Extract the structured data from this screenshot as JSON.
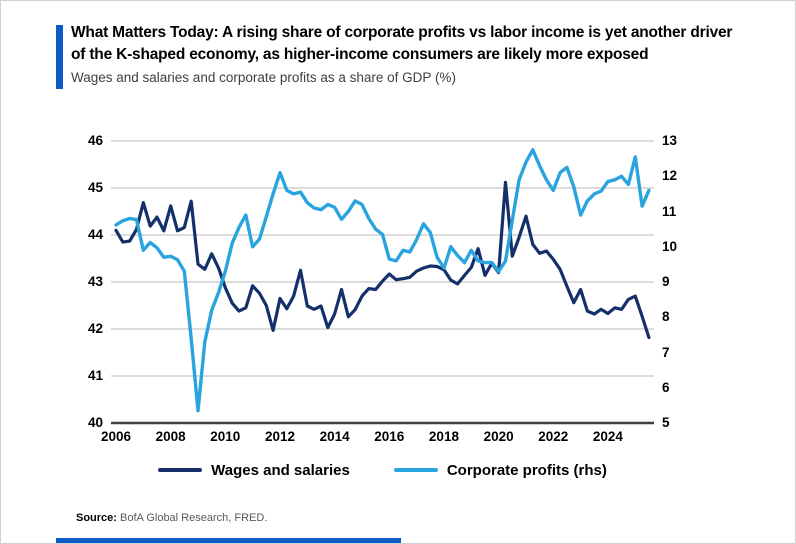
{
  "header": {
    "title_line1": "What Matters Today: A rising share of corporate profits vs labor income is yet another driver",
    "title_line2": "of the K-shaped economy, as higher-income consumers are likely more exposed",
    "subtitle": "Wages and salaries and corporate profits as a share of GDP (%)"
  },
  "source": {
    "label": "Source:",
    "text": " BofA Global Research, FRED."
  },
  "colors": {
    "accent_blue": "#0d5dc8",
    "navy_line": "#152f6b",
    "light_blue_line": "#29a4de",
    "gridline": "#c7c7c7",
    "axis_line": "#3f3f3f"
  },
  "chart_data": {
    "type": "line",
    "title": "Wages and salaries and corporate profits as a share of GDP (%)",
    "x_start_year": 2006,
    "x_step_years": 0.25,
    "x_tick_labels": [
      "2006",
      "2008",
      "2010",
      "2012",
      "2014",
      "2016",
      "2018",
      "2020",
      "2022",
      "2024"
    ],
    "left_axis": {
      "min": 40,
      "max": 46,
      "ticks": [
        40,
        41,
        42,
        43,
        44,
        45,
        46
      ]
    },
    "right_axis": {
      "min": 5,
      "max": 13,
      "ticks": [
        5,
        6,
        7,
        8,
        9,
        10,
        11,
        12,
        13
      ]
    },
    "grid": "horizontal",
    "legend_position": "bottom",
    "series": [
      {
        "name": "Wages and salaries",
        "axis": "left",
        "color": "#152f6b",
        "values": [
          44.1,
          43.85,
          43.87,
          44.12,
          44.69,
          44.19,
          44.38,
          44.09,
          44.62,
          44.09,
          44.16,
          44.72,
          43.38,
          43.27,
          43.6,
          43.3,
          42.88,
          42.55,
          42.38,
          42.45,
          42.92,
          42.76,
          42.5,
          41.97,
          42.65,
          42.43,
          42.7,
          43.25,
          42.49,
          42.42,
          42.49,
          42.03,
          42.32,
          42.84,
          42.26,
          42.41,
          42.7,
          42.86,
          42.84,
          43.02,
          43.17,
          43.05,
          43.07,
          43.1,
          43.23,
          43.3,
          43.34,
          43.33,
          43.26,
          43.04,
          42.96,
          43.14,
          43.31,
          43.71,
          43.14,
          43.4,
          43.2,
          45.12,
          43.55,
          43.95,
          44.4,
          43.8,
          43.61,
          43.66,
          43.48,
          43.27,
          42.91,
          42.56,
          42.84,
          42.38,
          42.32,
          42.42,
          42.33,
          42.45,
          42.42,
          42.63,
          42.7,
          42.27,
          41.82
        ]
      },
      {
        "name": "Corporate profits (rhs)",
        "axis": "right",
        "color": "#29a4de",
        "values": [
          10.62,
          10.74,
          10.8,
          10.77,
          9.9,
          10.12,
          9.97,
          9.7,
          9.73,
          9.63,
          9.31,
          7.4,
          5.35,
          7.3,
          8.2,
          8.7,
          9.3,
          10.1,
          10.55,
          10.9,
          10.0,
          10.22,
          10.85,
          11.5,
          12.1,
          11.6,
          11.5,
          11.55,
          11.25,
          11.1,
          11.05,
          11.2,
          11.12,
          10.78,
          11.0,
          11.3,
          11.2,
          10.8,
          10.5,
          10.35,
          9.65,
          9.6,
          9.9,
          9.85,
          10.2,
          10.65,
          10.4,
          9.7,
          9.4,
          10.0,
          9.75,
          9.55,
          9.9,
          9.6,
          9.55,
          9.55,
          9.3,
          9.6,
          10.75,
          11.9,
          12.4,
          12.75,
          12.3,
          11.9,
          11.6,
          12.1,
          12.25,
          11.7,
          10.9,
          11.3,
          11.5,
          11.58,
          11.85,
          11.9,
          12.0,
          11.77,
          12.55,
          11.15,
          11.6
        ]
      }
    ]
  }
}
